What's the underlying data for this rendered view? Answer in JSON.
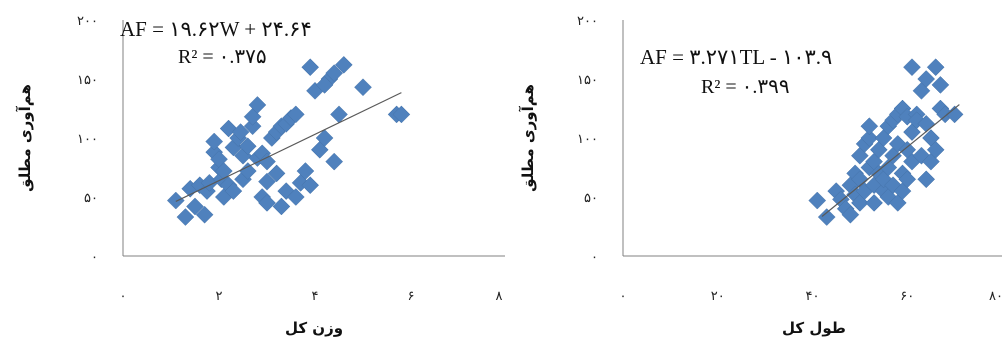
{
  "chart_data": [
    {
      "type": "scatter",
      "title": "",
      "xlabel": "وزن کل",
      "ylabel": "هم‌آوری مطلق",
      "xlim": [
        0,
        8
      ],
      "ylim": [
        0,
        200
      ],
      "x_ticks": [
        0,
        2,
        4,
        6,
        8
      ],
      "y_ticks": [
        50,
        100,
        150,
        200
      ],
      "x_tick_labels": [
        "٠",
        "٢",
        "۴",
        "۶",
        "٨"
      ],
      "y_tick_labels": [
        "۵٠",
        "١٠٠",
        "١۵٠",
        "٢٠٠"
      ],
      "y_zero_label": "٠",
      "annotations": {
        "equation": "AF = ١٩.۶٢W + ٢۴.۶۴",
        "r2": "R² = ٠.٣٧۵"
      },
      "trendline": {
        "slope": 19.62,
        "intercept": 24.64,
        "x_range": [
          1.1,
          5.8
        ]
      },
      "marker_color": "#4F81BD",
      "line_color": "#595959",
      "points": [
        [
          1.1,
          47
        ],
        [
          1.3,
          33
        ],
        [
          1.4,
          57
        ],
        [
          1.5,
          42
        ],
        [
          1.6,
          60
        ],
        [
          1.7,
          35
        ],
        [
          1.75,
          55
        ],
        [
          1.8,
          62
        ],
        [
          1.9,
          88
        ],
        [
          1.9,
          97
        ],
        [
          2.0,
          75
        ],
        [
          2.0,
          82
        ],
        [
          2.05,
          65
        ],
        [
          2.1,
          50
        ],
        [
          2.1,
          72
        ],
        [
          2.2,
          108
        ],
        [
          2.2,
          60
        ],
        [
          2.3,
          92
        ],
        [
          2.3,
          55
        ],
        [
          2.4,
          100
        ],
        [
          2.45,
          105
        ],
        [
          2.5,
          65
        ],
        [
          2.5,
          85
        ],
        [
          2.6,
          93
        ],
        [
          2.6,
          72
        ],
        [
          2.7,
          110
        ],
        [
          2.7,
          118
        ],
        [
          2.8,
          128
        ],
        [
          2.8,
          83
        ],
        [
          2.9,
          87
        ],
        [
          2.9,
          50
        ],
        [
          3.0,
          80
        ],
        [
          3.0,
          45
        ],
        [
          3.1,
          100
        ],
        [
          3.2,
          105
        ],
        [
          3.2,
          70
        ],
        [
          3.3,
          110
        ],
        [
          3.3,
          42
        ],
        [
          3.4,
          112
        ],
        [
          3.4,
          55
        ],
        [
          3.5,
          117
        ],
        [
          3.6,
          120
        ],
        [
          3.6,
          50
        ],
        [
          3.7,
          62
        ],
        [
          3.8,
          72
        ],
        [
          3.9,
          60
        ],
        [
          3.9,
          160
        ],
        [
          4.0,
          140
        ],
        [
          4.1,
          90
        ],
        [
          4.2,
          100
        ],
        [
          4.3,
          150
        ],
        [
          4.4,
          155
        ],
        [
          4.4,
          80
        ],
        [
          4.5,
          120
        ],
        [
          4.6,
          162
        ],
        [
          5.0,
          143
        ],
        [
          5.7,
          120
        ],
        [
          5.8,
          120
        ],
        [
          4.2,
          145
        ],
        [
          3.0,
          63
        ]
      ]
    },
    {
      "type": "scatter",
      "title": "",
      "xlabel": "طول کل",
      "ylabel": "هم‌آوری مطلق",
      "xlim": [
        0,
        80
      ],
      "ylim": [
        0,
        200
      ],
      "x_ticks": [
        0,
        20,
        40,
        60,
        80
      ],
      "y_ticks": [
        50,
        100,
        150,
        200
      ],
      "x_tick_labels": [
        "٠",
        "٢٠",
        "۴٠",
        "۶٠",
        "٨٠"
      ],
      "y_tick_labels": [
        "۵٠",
        "١٠٠",
        "١۵٠",
        "٢٠٠"
      ],
      "y_zero_label": "٠",
      "annotations": {
        "equation": "AF = ٣.٢٧١TL - ١٠٣.٩",
        "r2": "R² = ٠.٣٩٩"
      },
      "trendline": {
        "slope": 3.271,
        "intercept": -103.9,
        "x_range": [
          42,
          71
        ]
      },
      "marker_color": "#4F81BD",
      "line_color": "#595959",
      "points": [
        [
          41,
          47
        ],
        [
          43,
          33
        ],
        [
          45,
          55
        ],
        [
          46,
          48
        ],
        [
          47,
          40
        ],
        [
          48,
          60
        ],
        [
          48,
          35
        ],
        [
          49,
          52
        ],
        [
          49,
          70
        ],
        [
          50,
          45
        ],
        [
          50,
          65
        ],
        [
          50,
          85
        ],
        [
          51,
          95
        ],
        [
          51,
          55
        ],
        [
          52,
          75
        ],
        [
          52,
          100
        ],
        [
          52,
          110
        ],
        [
          53,
          60
        ],
        [
          53,
          80
        ],
        [
          53,
          45
        ],
        [
          54,
          90
        ],
        [
          54,
          70
        ],
        [
          55,
          100
        ],
        [
          55,
          55
        ],
        [
          55,
          65
        ],
        [
          56,
          110
        ],
        [
          56,
          75
        ],
        [
          56,
          50
        ],
        [
          57,
          115
        ],
        [
          57,
          85
        ],
        [
          57,
          60
        ],
        [
          58,
          120
        ],
        [
          58,
          95
        ],
        [
          58,
          45
        ],
        [
          59,
          125
        ],
        [
          59,
          70
        ],
        [
          59,
          55
        ],
        [
          60,
          118
        ],
        [
          60,
          65
        ],
        [
          61,
          105
        ],
        [
          61,
          80
        ],
        [
          61,
          160
        ],
        [
          62,
          120
        ],
        [
          62,
          115
        ],
        [
          63,
          85
        ],
        [
          63,
          140
        ],
        [
          64,
          150
        ],
        [
          64,
          112
        ],
        [
          65,
          100
        ],
        [
          65,
          80
        ],
        [
          66,
          90
        ],
        [
          66,
          160
        ],
        [
          67,
          145
        ],
        [
          67,
          125
        ],
        [
          68,
          120
        ],
        [
          70,
          120
        ],
        [
          64,
          65
        ],
        [
          60,
          90
        ]
      ]
    }
  ]
}
